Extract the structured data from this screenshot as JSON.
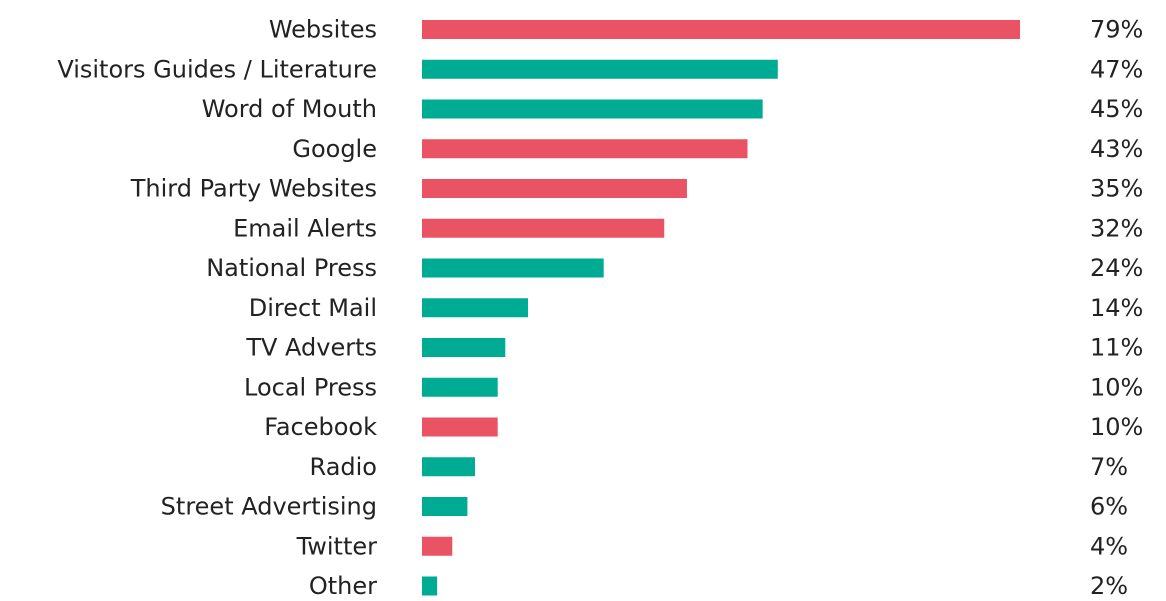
{
  "chart_data": {
    "type": "bar",
    "orientation": "horizontal",
    "categories": [
      "Websites",
      "Visitors Guides / Literature",
      "Word of Mouth",
      "Google",
      "Third Party Websites",
      "Email Alerts",
      "National Press",
      "Direct Mail",
      "TV Adverts",
      "Local Press",
      "Facebook",
      "Radio",
      "Street Advertising",
      "Twitter",
      "Other"
    ],
    "values": [
      79,
      47,
      45,
      43,
      35,
      32,
      24,
      14,
      11,
      10,
      10,
      7,
      6,
      4,
      2
    ],
    "value_labels": [
      "79%",
      "47%",
      "45%",
      "43%",
      "35%",
      "32%",
      "24%",
      "14%",
      "11%",
      "10%",
      "10%",
      "7%",
      "6%",
      "4%",
      "2%"
    ],
    "bar_groups": [
      "red",
      "green",
      "green",
      "red",
      "red",
      "red",
      "green",
      "green",
      "green",
      "green",
      "red",
      "green",
      "green",
      "red",
      "green"
    ],
    "colors": {
      "red": "#e95363",
      "green": "#00ab93"
    },
    "title": "",
    "xlabel": "",
    "ylabel": "",
    "xlim": [
      0,
      100
    ],
    "grid": false,
    "legend": "none"
  }
}
